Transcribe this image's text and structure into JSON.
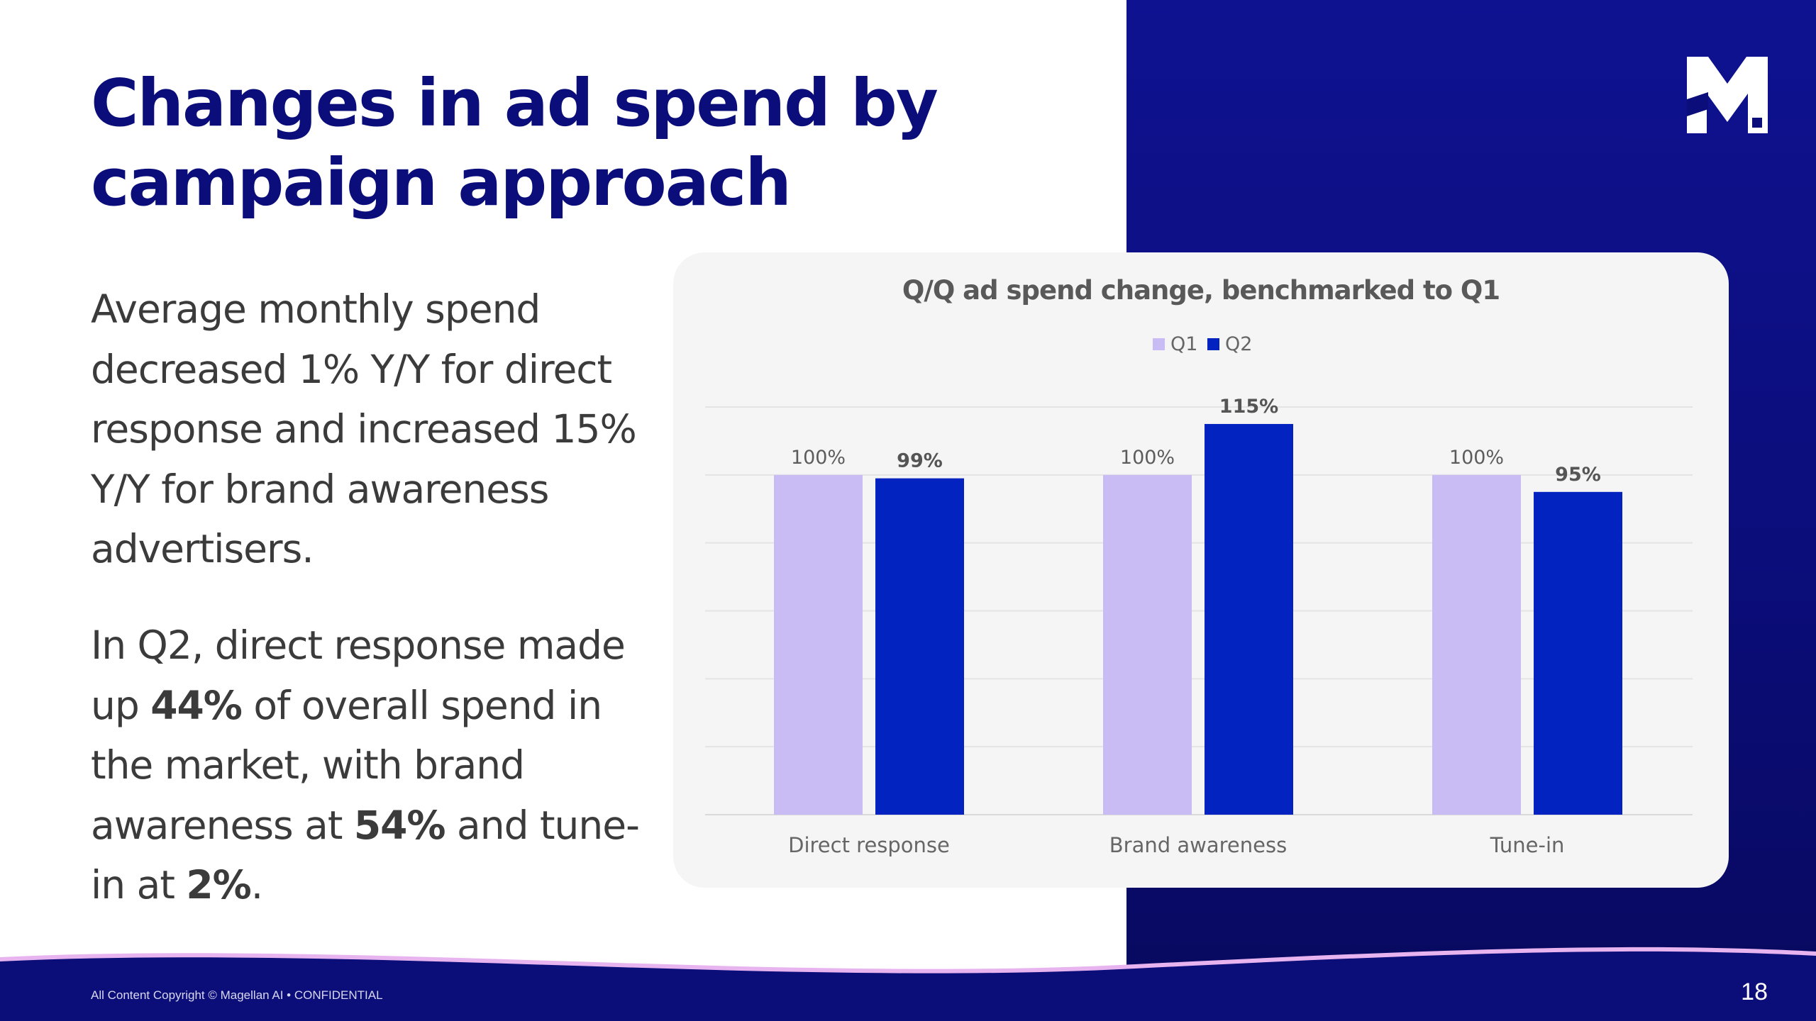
{
  "title": "Changes in ad spend by campaign approach",
  "body": {
    "para1": "Average monthly spend decreased 1% Y/Y for direct response and increased 15% Y/Y for brand awareness advertisers.",
    "para2": {
      "t1": "In Q2, direct response made up ",
      "b1": "44%",
      "t2": " of overall spend in the market, with brand awareness at ",
      "b2": "54%",
      "t3": " and tune-in at ",
      "b3": "2%",
      "t4": "."
    }
  },
  "chart_data": {
    "type": "bar",
    "title": "Q/Q ad spend change, benchmarked to Q1",
    "categories": [
      "Direct response",
      "Brand awareness",
      "Tune-in"
    ],
    "series": [
      {
        "name": "Q1",
        "values": [
          100,
          100,
          100
        ],
        "labels": [
          "100%",
          "100%",
          "100%"
        ],
        "color": "#c9bcf5"
      },
      {
        "name": "Q2",
        "values": [
          99,
          115,
          95
        ],
        "labels": [
          "99%",
          "115%",
          "95%"
        ],
        "color": "#0323c1"
      }
    ],
    "ylim": [
      0,
      120
    ],
    "grid": true,
    "legend": "top-center"
  },
  "footer": {
    "copyright": "All Content Copyright © Magellan AI • CONFIDENTIAL",
    "page_number": "18"
  },
  "colors": {
    "brand_navy": "#0b0e7a",
    "q1": "#c9bcf5",
    "q2": "#0323c1",
    "accent_wave": "#e8b4f0"
  },
  "icons": {
    "logo": "magellan-m-logo-icon"
  }
}
